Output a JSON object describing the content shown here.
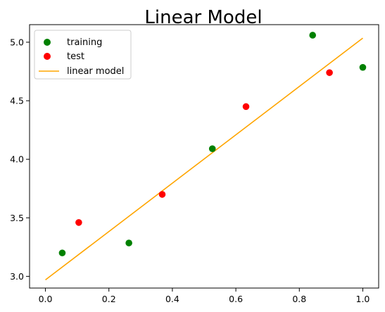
{
  "chart_data": {
    "type": "scatter",
    "title": "Linear Model",
    "xlabel": "",
    "ylabel": "",
    "xlim": [
      -0.05,
      1.05
    ],
    "ylim": [
      2.9,
      5.15
    ],
    "grid": false,
    "legend_position": "top-left",
    "x_ticks": [
      0.0,
      0.2,
      0.4,
      0.6,
      0.8,
      1.0
    ],
    "x_tick_labels": [
      "0.0",
      "0.2",
      "0.4",
      "0.6",
      "0.8",
      "1.0"
    ],
    "y_ticks": [
      3.0,
      3.5,
      4.0,
      4.5,
      5.0
    ],
    "y_tick_labels": [
      "3.0",
      "3.5",
      "4.0",
      "4.5",
      "5.0"
    ],
    "series": [
      {
        "name": "training",
        "kind": "scatter",
        "color": "#008000",
        "points": [
          {
            "x": 0.053,
            "y": 3.2
          },
          {
            "x": 0.263,
            "y": 3.285
          },
          {
            "x": 0.526,
            "y": 4.09
          },
          {
            "x": 0.842,
            "y": 5.06
          },
          {
            "x": 1.0,
            "y": 4.785
          }
        ]
      },
      {
        "name": "test",
        "kind": "scatter",
        "color": "#ff0000",
        "points": [
          {
            "x": 0.105,
            "y": 3.46
          },
          {
            "x": 0.368,
            "y": 3.7
          },
          {
            "x": 0.632,
            "y": 4.45
          },
          {
            "x": 0.895,
            "y": 4.74
          }
        ]
      },
      {
        "name": "linear model",
        "kind": "line",
        "color": "#ffa500",
        "points": [
          {
            "x": 0.0,
            "y": 2.97
          },
          {
            "x": 1.0,
            "y": 5.035
          }
        ]
      }
    ]
  }
}
